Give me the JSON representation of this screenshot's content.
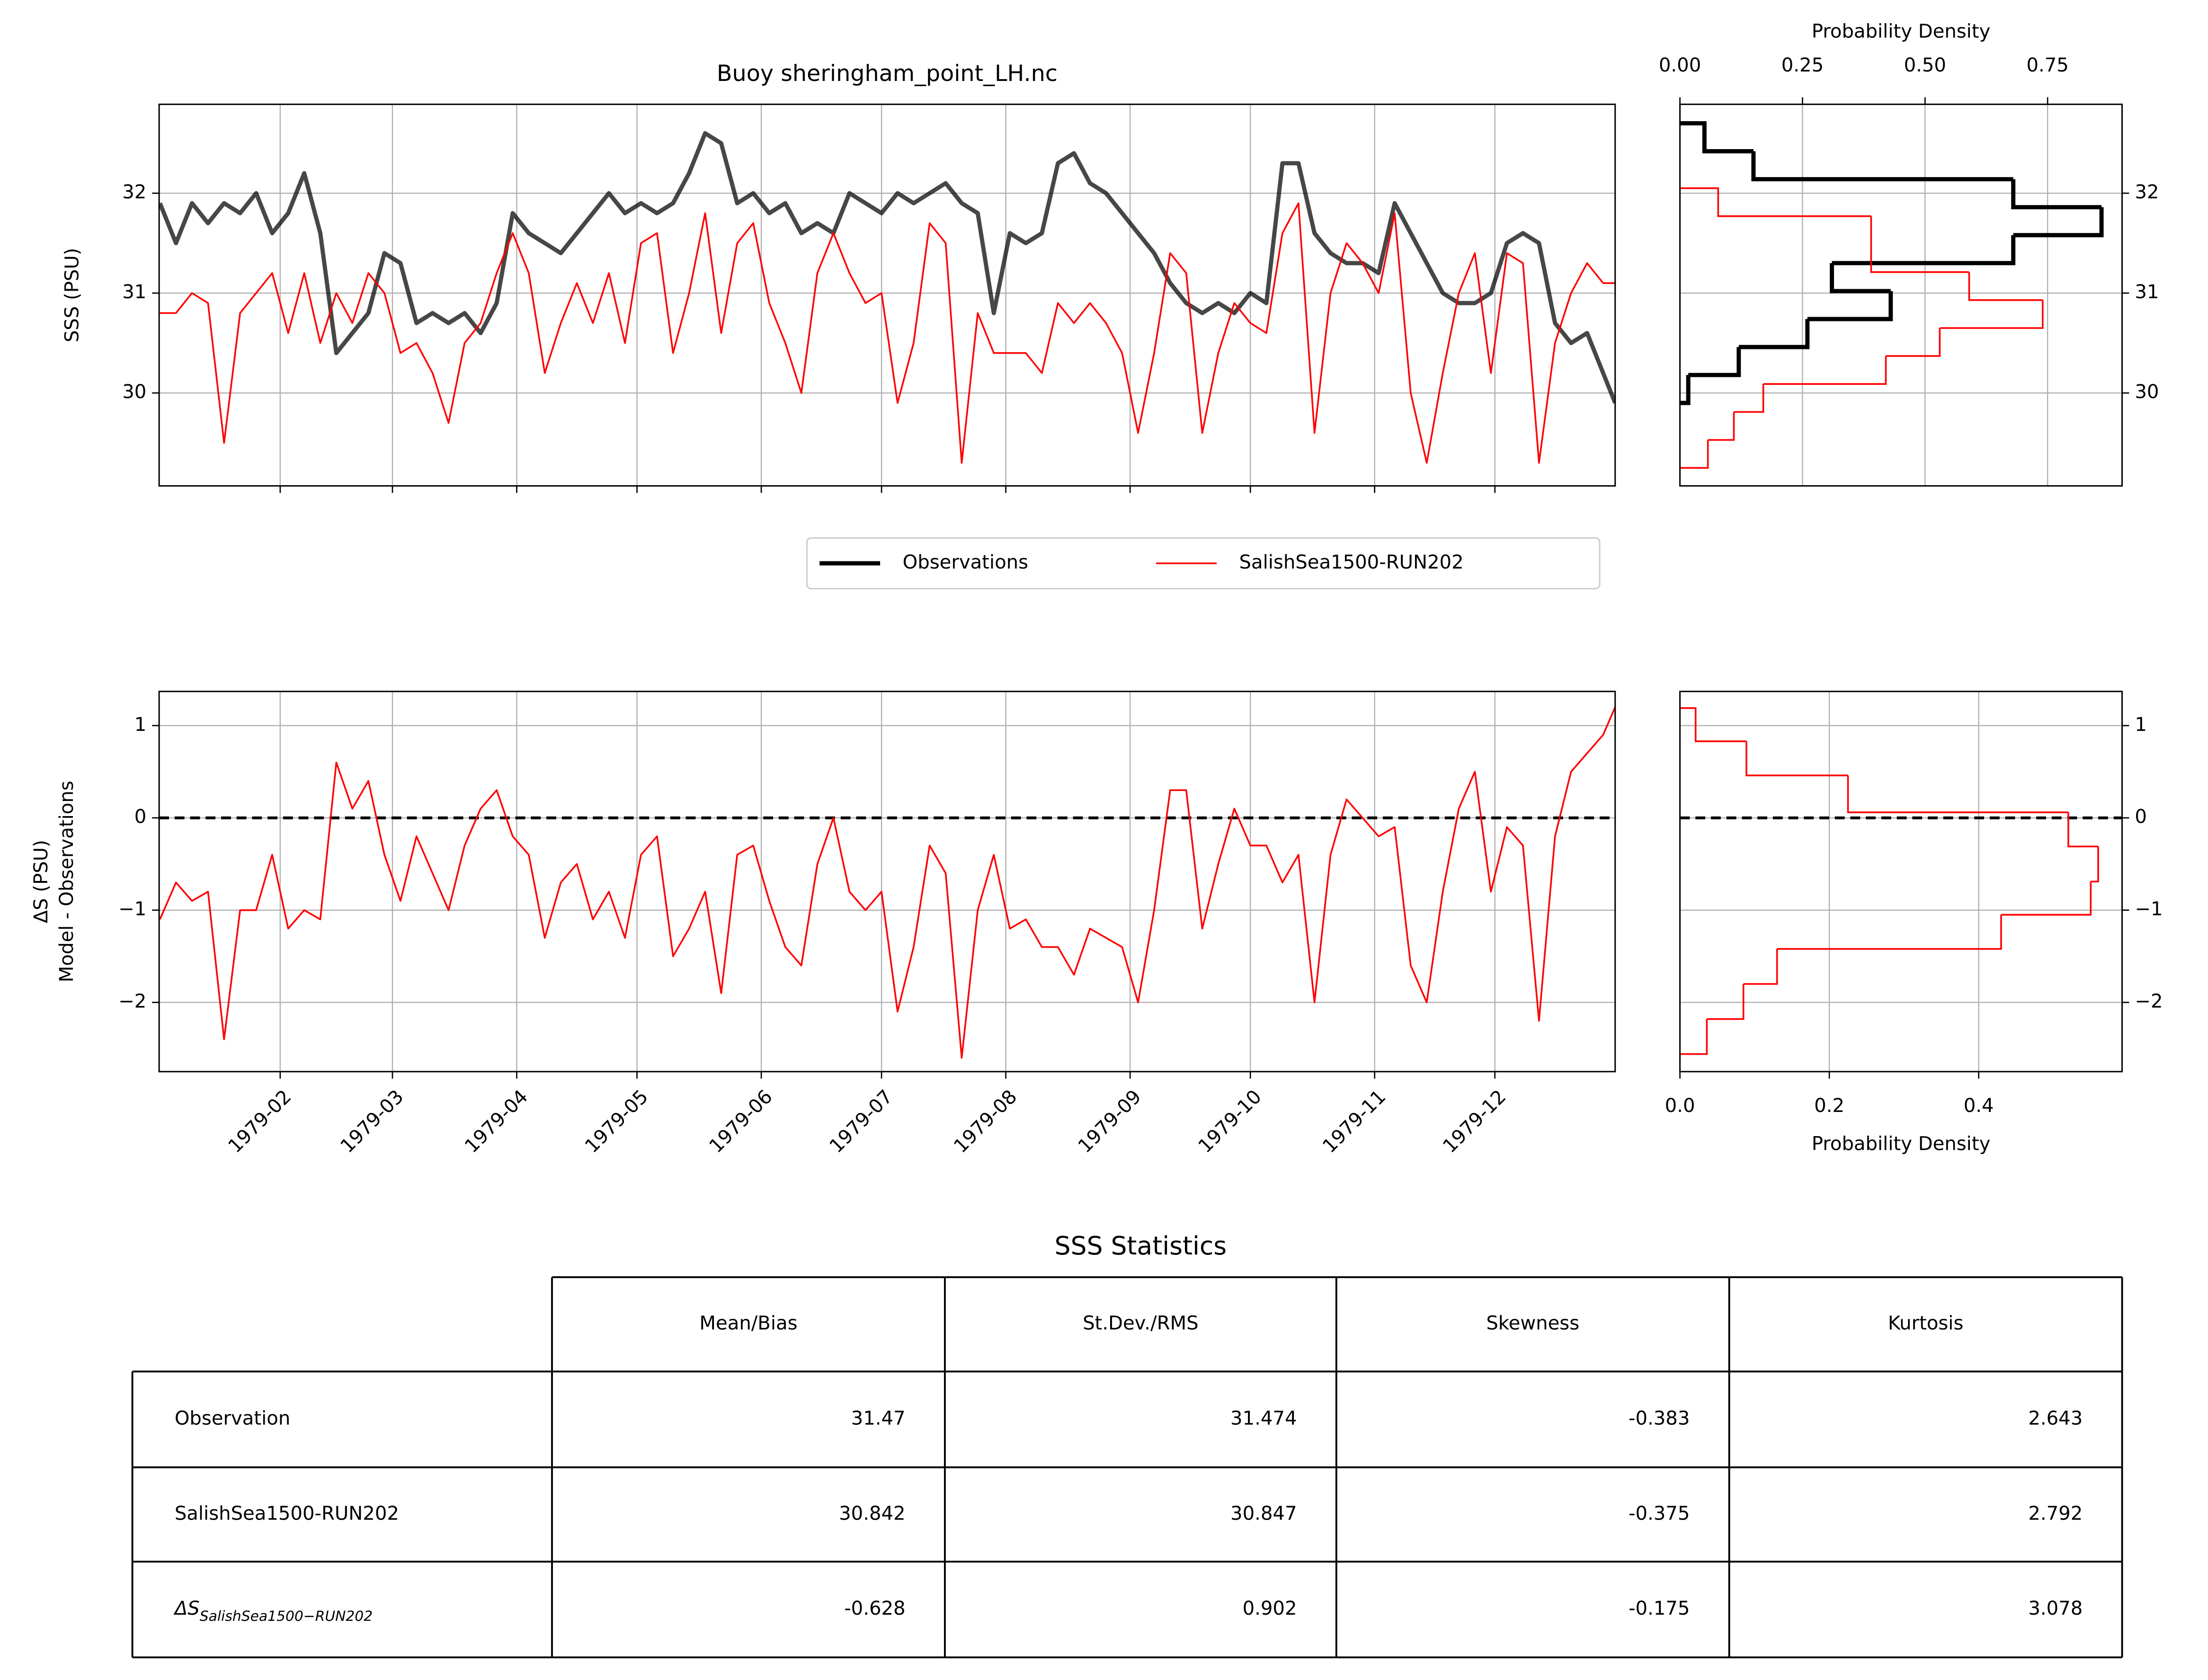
{
  "chart_data": [
    {
      "type": "line",
      "title": "Buoy sheringham_point_LH.nc",
      "ylabel": "SSS (PSU)",
      "x": [
        1,
        5,
        9,
        13,
        17,
        21,
        25,
        29,
        33,
        37,
        41,
        45,
        49,
        53,
        57,
        61,
        65,
        69,
        73,
        77,
        81,
        85,
        89,
        93,
        97,
        101,
        105,
        109,
        113,
        117,
        121,
        125,
        129,
        133,
        137,
        141,
        145,
        149,
        153,
        157,
        161,
        165,
        169,
        173,
        177,
        181,
        185,
        189,
        193,
        197,
        201,
        205,
        209,
        213,
        217,
        221,
        225,
        229,
        233,
        237,
        241,
        245,
        249,
        253,
        257,
        261,
        265,
        269,
        273,
        277,
        281,
        285,
        289,
        293,
        297,
        301,
        305,
        309,
        313,
        317,
        321,
        325,
        329,
        333,
        337,
        341,
        345,
        349,
        353,
        357,
        361,
        364
      ],
      "series": [
        {
          "name": "Observations",
          "color": "#000000",
          "linestyle": "thick",
          "values": [
            31.9,
            31.5,
            31.9,
            31.7,
            31.9,
            31.8,
            32.0,
            31.6,
            31.8,
            32.2,
            31.6,
            30.4,
            30.6,
            30.8,
            31.4,
            31.3,
            30.7,
            30.8,
            30.7,
            30.8,
            30.6,
            30.9,
            31.8,
            31.6,
            31.5,
            31.4,
            31.6,
            31.8,
            32.0,
            31.8,
            31.9,
            31.8,
            31.9,
            32.2,
            32.6,
            32.5,
            31.9,
            32.0,
            31.8,
            31.9,
            31.6,
            31.7,
            31.6,
            32.0,
            31.9,
            31.8,
            32.0,
            31.9,
            32.0,
            32.1,
            31.9,
            31.8,
            30.8,
            31.6,
            31.5,
            31.6,
            32.3,
            32.4,
            32.1,
            32.0,
            31.8,
            31.6,
            31.4,
            31.1,
            30.9,
            30.8,
            30.9,
            30.8,
            31.0,
            30.9,
            32.3,
            32.3,
            31.6,
            31.4,
            31.3,
            31.3,
            31.2,
            31.9,
            31.6,
            31.3,
            31.0,
            30.9,
            30.9,
            31.0,
            31.5,
            31.6,
            31.5,
            30.7,
            30.5,
            30.6,
            30.2,
            29.9
          ]
        },
        {
          "name": "SalishSea1500-RUN202",
          "color": "#ff0000",
          "linestyle": "thin",
          "values": [
            30.8,
            30.8,
            31.0,
            30.9,
            29.5,
            30.8,
            31.0,
            31.2,
            30.6,
            31.2,
            30.5,
            31.0,
            30.7,
            31.2,
            31.0,
            30.4,
            30.5,
            30.2,
            29.7,
            30.5,
            30.7,
            31.2,
            31.6,
            31.2,
            30.2,
            30.7,
            31.1,
            30.7,
            31.2,
            30.5,
            31.5,
            31.6,
            30.4,
            31.0,
            31.8,
            30.6,
            31.5,
            31.7,
            30.9,
            30.5,
            30.0,
            31.2,
            31.6,
            31.2,
            30.9,
            31.0,
            29.9,
            30.5,
            31.7,
            31.5,
            29.3,
            30.8,
            30.4,
            30.4,
            30.4,
            30.2,
            30.9,
            30.7,
            30.9,
            30.7,
            30.4,
            29.6,
            30.4,
            31.4,
            31.2,
            29.6,
            30.4,
            30.9,
            30.7,
            30.6,
            31.6,
            31.9,
            29.6,
            31.0,
            31.5,
            31.3,
            31.0,
            31.8,
            30.0,
            29.3,
            30.2,
            31.0,
            31.4,
            30.2,
            31.4,
            31.3,
            29.3,
            30.5,
            31.0,
            31.3,
            31.1,
            31.1
          ]
        }
      ],
      "xlim": [
        0.8,
        364
      ],
      "xticks": [
        31,
        59,
        90,
        120,
        151,
        181,
        212,
        243,
        273,
        304,
        334
      ],
      "ylim": [
        29.07,
        32.89
      ],
      "yticks": [
        30,
        31,
        32
      ],
      "grid": true,
      "legend": "below"
    },
    {
      "type": "histogram",
      "orientation": "horizontal",
      "xlabel": "Probability Density",
      "xaxis": "top",
      "yaxis": "right",
      "series": [
        {
          "color": "#000000",
          "linestyle": "thick",
          "bins": [
            29.9,
            30.18,
            30.46,
            30.74,
            31.02,
            31.3,
            31.58,
            31.86,
            32.14,
            32.42,
            32.7
          ],
          "values": [
            0.017,
            0.12,
            0.26,
            0.43,
            0.31,
            0.68,
            0.86,
            0.68,
            0.15,
            0.05
          ]
        },
        {
          "color": "#ff0000",
          "linestyle": "thin",
          "bins": [
            29.25,
            29.53,
            29.81,
            30.09,
            30.37,
            30.65,
            30.93,
            31.21,
            31.49,
            31.77,
            32.05
          ],
          "values": [
            0.057,
            0.11,
            0.17,
            0.42,
            0.53,
            0.74,
            0.59,
            0.39,
            0.39,
            0.078
          ]
        }
      ],
      "xlim": [
        0,
        0.902
      ],
      "xticks": [
        {
          "value": 0,
          "label": "0.00"
        },
        0.25,
        {
          "value": 0.5,
          "label": "0.50"
        },
        0.75
      ],
      "ylim": [
        29.07,
        32.89
      ],
      "yticks": [
        30,
        31,
        32
      ],
      "grid": true
    },
    {
      "type": "line",
      "ylabel": [
        "ΔS (PSU)",
        "Model - Observations"
      ],
      "x": [
        1,
        5,
        9,
        13,
        17,
        21,
        25,
        29,
        33,
        37,
        41,
        45,
        49,
        53,
        57,
        61,
        65,
        69,
        73,
        77,
        81,
        85,
        89,
        93,
        97,
        101,
        105,
        109,
        113,
        117,
        121,
        125,
        129,
        133,
        137,
        141,
        145,
        149,
        153,
        157,
        161,
        165,
        169,
        173,
        177,
        181,
        185,
        189,
        193,
        197,
        201,
        205,
        209,
        213,
        217,
        221,
        225,
        229,
        233,
        237,
        241,
        245,
        249,
        253,
        257,
        261,
        265,
        269,
        273,
        277,
        281,
        285,
        289,
        293,
        297,
        301,
        305,
        309,
        313,
        317,
        321,
        325,
        329,
        333,
        337,
        341,
        345,
        349,
        353,
        357,
        361,
        364
      ],
      "series": [
        {
          "color": "#ff0000",
          "linestyle": "thin",
          "values": [
            -1.1,
            -0.7,
            -0.9,
            -0.8,
            -2.4,
            -1.0,
            -1.0,
            -0.4,
            -1.2,
            -1.0,
            -1.1,
            0.6,
            0.1,
            0.4,
            -0.4,
            -0.9,
            -0.2,
            -0.6,
            -1.0,
            -0.3,
            0.1,
            0.3,
            -0.2,
            -0.4,
            -1.3,
            -0.7,
            -0.5,
            -1.1,
            -0.8,
            -1.3,
            -0.4,
            -0.2,
            -1.5,
            -1.2,
            -0.8,
            -1.9,
            -0.4,
            -0.3,
            -0.9,
            -1.4,
            -1.6,
            -0.5,
            0.0,
            -0.8,
            -1.0,
            -0.8,
            -2.1,
            -1.4,
            -0.3,
            -0.6,
            -2.6,
            -1.0,
            -0.4,
            -1.2,
            -1.1,
            -1.4,
            -1.4,
            -1.7,
            -1.2,
            -1.3,
            -1.4,
            -2.0,
            -1.0,
            0.3,
            0.3,
            -1.2,
            -0.5,
            0.1,
            -0.3,
            -0.3,
            -0.7,
            -0.4,
            -2.0,
            -0.4,
            0.2,
            0.0,
            -0.2,
            -0.1,
            -1.6,
            -2.0,
            -0.8,
            0.1,
            0.5,
            -0.8,
            -0.1,
            -0.3,
            -2.2,
            -0.2,
            0.5,
            0.7,
            0.9,
            1.2
          ]
        }
      ],
      "xlim": [
        0.8,
        364
      ],
      "xticks": [
        {
          "value": 31,
          "label": "1979-02"
        },
        {
          "value": 59,
          "label": "1979-03"
        },
        {
          "value": 90,
          "label": "1979-04"
        },
        {
          "value": 120,
          "label": "1979-05"
        },
        {
          "value": 151,
          "label": "1979-06"
        },
        {
          "value": 181,
          "label": "1979-07"
        },
        {
          "value": 212,
          "label": "1979-08"
        },
        {
          "value": 243,
          "label": "1979-09"
        },
        {
          "value": 273,
          "label": "1979-10"
        },
        {
          "value": 304,
          "label": "1979-11"
        },
        {
          "value": 334,
          "label": "1979-12"
        }
      ],
      "ylim": [
        -2.75,
        1.37
      ],
      "yticks": [
        {
          "value": -2,
          "label": "−2"
        },
        {
          "value": -1,
          "label": "−1"
        },
        0,
        1
      ],
      "hline": 0,
      "grid": true
    },
    {
      "type": "histogram",
      "orientation": "horizontal",
      "xlabel": "Probability Density",
      "xaxis": "bottom",
      "yaxis": "right",
      "series": [
        {
          "color": "#ff0000",
          "linestyle": "thin",
          "bins": [
            -2.56,
            -2.18,
            -1.8,
            -1.42,
            -1.05,
            -0.69,
            -0.31,
            0.06,
            0.46,
            0.83,
            1.19
          ],
          "values": [
            0.036,
            0.085,
            0.13,
            0.43,
            0.55,
            0.56,
            0.52,
            0.225,
            0.089,
            0.021
          ]
        }
      ],
      "xlim": [
        0,
        0.592
      ],
      "xticks": [
        {
          "value": 0,
          "label": "0.0"
        },
        0.2,
        0.4
      ],
      "ylim": [
        -2.75,
        1.37
      ],
      "yticks": [
        {
          "value": -2,
          "label": "−2"
        },
        {
          "value": -1,
          "label": "−1"
        },
        0,
        1
      ],
      "hline": 0,
      "grid": true
    },
    {
      "type": "table",
      "title": "SSS Statistics",
      "columns": [
        "Mean/Bias",
        "St.Dev./RMS",
        "Skewness",
        "Kurtosis"
      ],
      "rows": [
        {
          "label": "Observation",
          "values": [
            31.47,
            31.474,
            -0.383,
            2.643
          ]
        },
        {
          "label": "SalishSea1500-RUN202",
          "values": [
            30.842,
            30.847,
            -0.375,
            2.792
          ]
        },
        {
          "label": "ΔS",
          "label_sub": "SalishSea1500−RUN202",
          "values": [
            -0.628,
            0.902,
            -0.175,
            3.078
          ]
        }
      ]
    }
  ]
}
